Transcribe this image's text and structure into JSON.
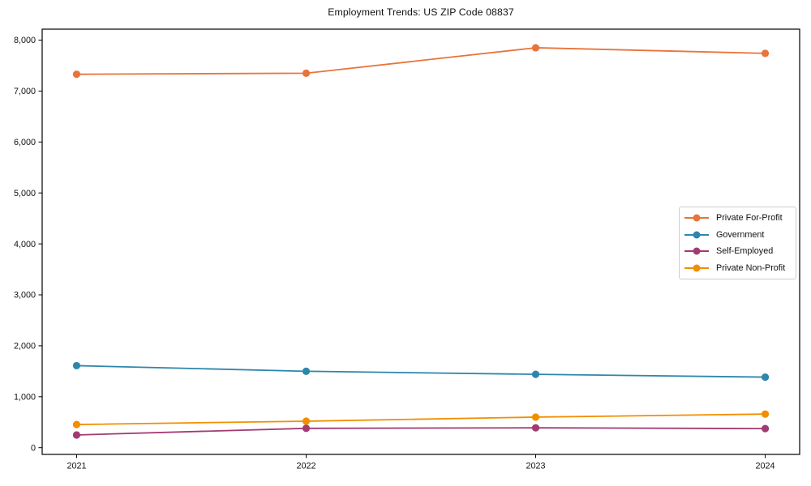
{
  "figure": {
    "background": "#ffffff",
    "frame_color": "#000000",
    "text_color": "#111111",
    "legend_border_color": "#cccccc"
  },
  "chart_data": {
    "type": "line",
    "title": "Employment Trends: US ZIP Code 08837",
    "xlabel": "",
    "ylabel": "",
    "x": [
      2021,
      2022,
      2023,
      2024
    ],
    "xtick_labels": [
      "2021",
      "2022",
      "2023",
      "2024"
    ],
    "ytick_values": [
      0,
      1000,
      2000,
      3000,
      4000,
      5000,
      6000,
      7000,
      8000
    ],
    "ytick_labels": [
      "0",
      "1,000",
      "2,000",
      "3,000",
      "4,000",
      "5,000",
      "6,000",
      "7,000",
      "8,000"
    ],
    "xlim": [
      2020.85,
      2024.15
    ],
    "ylim": [
      -132,
      8215
    ],
    "grid": false,
    "legend_position": "center-right",
    "series": [
      {
        "name": "Private For-Profit",
        "color": "#E8743B",
        "values": [
          7330,
          7350,
          7850,
          7740
        ]
      },
      {
        "name": "Government",
        "color": "#2E86AB",
        "values": [
          1610,
          1500,
          1440,
          1385
        ]
      },
      {
        "name": "Self-Employed",
        "color": "#A23B72",
        "values": [
          250,
          380,
          390,
          375
        ]
      },
      {
        "name": "Private Non-Profit",
        "color": "#F18F01",
        "values": [
          455,
          520,
          600,
          660
        ]
      }
    ]
  }
}
